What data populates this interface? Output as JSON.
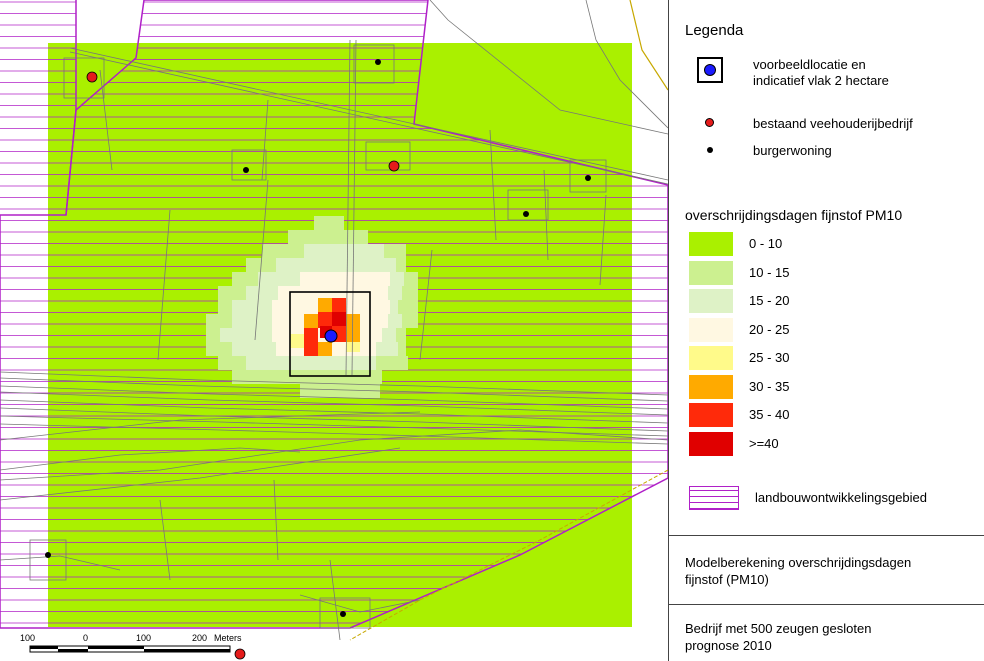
{
  "legend": {
    "title": "Legenda",
    "location_symbol_label_line1": "voorbeeldlocatie en",
    "location_symbol_label_line2": "indicatief vlak 2 hectare",
    "farm_label": "bestaand veehouderijbedrijf",
    "house_label": "burgerwoning",
    "classes_title": "overschrijdingsdagen fijnstof PM10",
    "classes": [
      {
        "label": "0 - 10",
        "color": "#aaf000"
      },
      {
        "label": "10 - 15",
        "color": "#ccf090"
      },
      {
        "label": "15 - 20",
        "color": "#def2c6"
      },
      {
        "label": "20 - 25",
        "color": "#fff8e2"
      },
      {
        "label": "25 - 30",
        "color": "#fffa8a"
      },
      {
        "label": "30 - 35",
        "color": "#ffaa00"
      },
      {
        "label": "35 - 40",
        "color": "#ff2a0a"
      },
      {
        "label": ">=40",
        "color": "#e00000"
      }
    ],
    "development_area_label": "landbouwontwikkelingsgebied",
    "development_area_color": "#b020c8"
  },
  "info": {
    "model_line1": "Modelberekening overschrijdingsdagen",
    "model_line2": "fijnstof (PM10)",
    "scenario_line1": "Bedrijf met 500 zeugen gesloten",
    "scenario_line2": "prognose 2010"
  },
  "scalebar": {
    "labels": [
      "100",
      "0",
      "100",
      "200"
    ],
    "unit": "Meters"
  }
}
